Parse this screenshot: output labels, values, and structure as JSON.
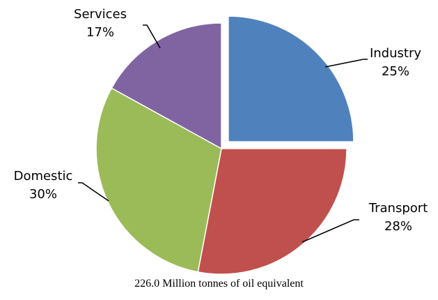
{
  "chart_data": {
    "type": "pie",
    "caption": "226.0 Million tonnes of oil equivalent",
    "start_angle_deg": 0,
    "direction": "clockwise",
    "exploded": "Industry",
    "slices": [
      {
        "name": "Industry",
        "value": 25,
        "label": "25%",
        "color": "#4F81BD"
      },
      {
        "name": "Transport",
        "value": 28,
        "label": "28%",
        "color": "#C0504D"
      },
      {
        "name": "Domestic",
        "value": 30,
        "label": "30%",
        "color": "#9BBB59"
      },
      {
        "name": "Services",
        "value": 17,
        "label": "17%",
        "color": "#8064A2"
      }
    ]
  }
}
